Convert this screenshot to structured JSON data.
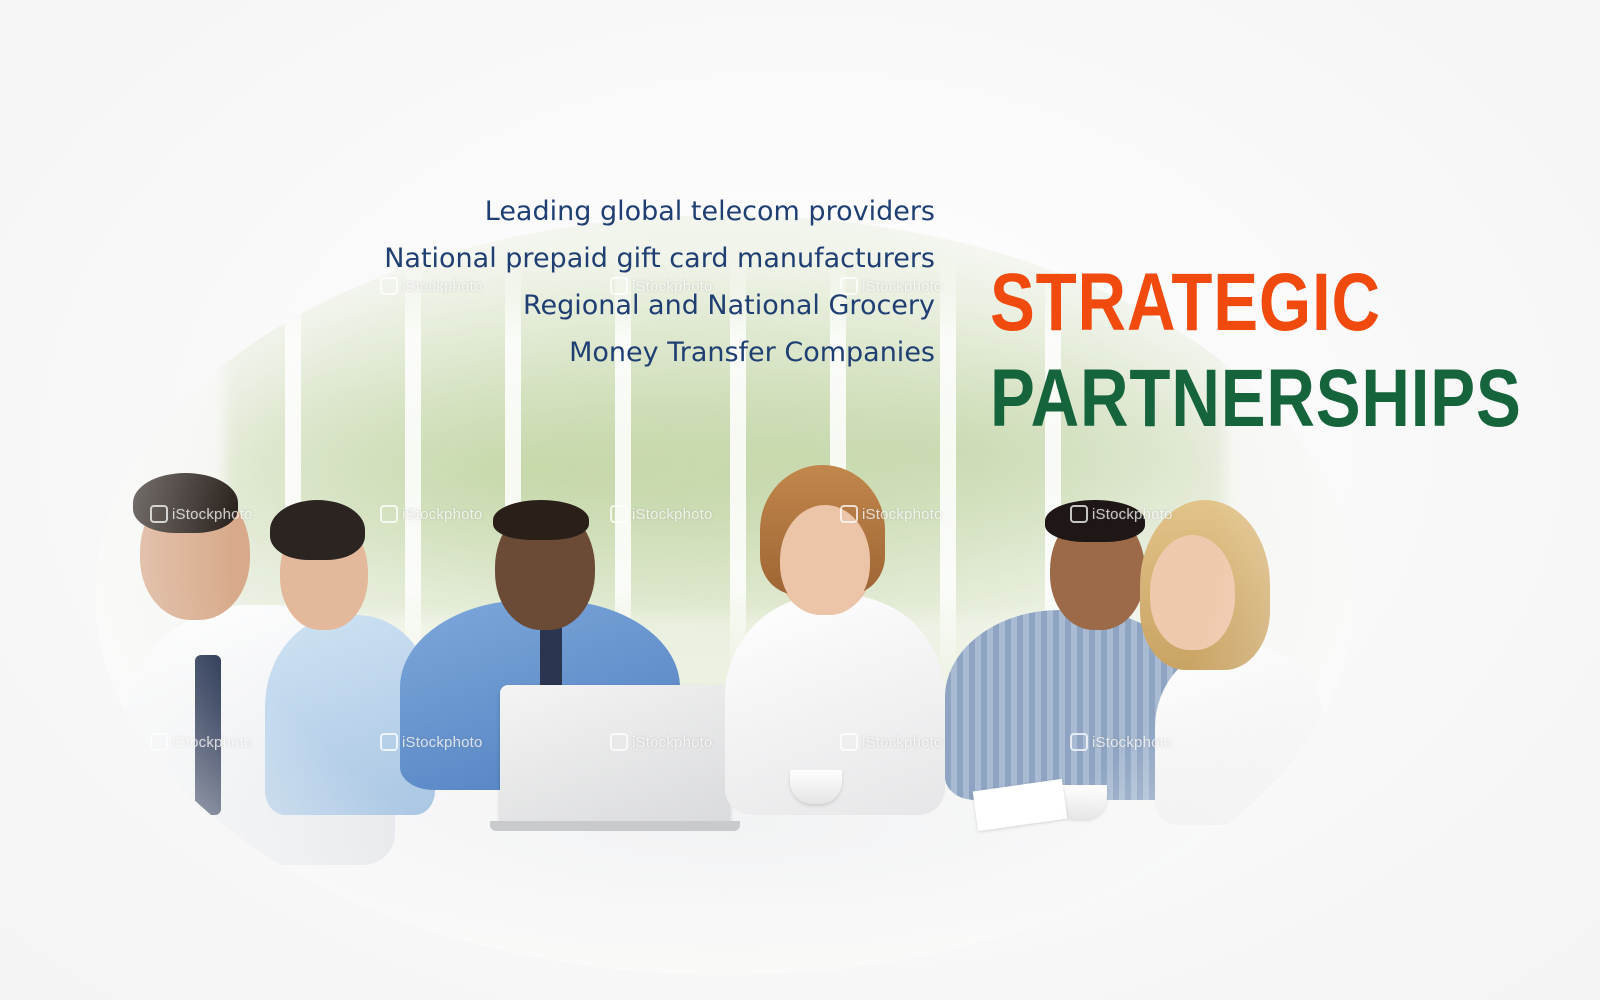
{
  "partners_list": [
    "Leading global telecom providers",
    "National prepaid gift card manufacturers",
    "Regional and National Grocery",
    "Money Transfer Companies"
  ],
  "headline": {
    "line1": "STRATEGIC",
    "line2": "PARTNERSHIPS"
  },
  "watermark_text": "iStockphoto",
  "colors": {
    "list_text": "#1f3f73",
    "headline_line1": "#f04a0e",
    "headline_line2": "#16643c"
  },
  "photo": {
    "description_icon": "business-meeting-photo"
  }
}
